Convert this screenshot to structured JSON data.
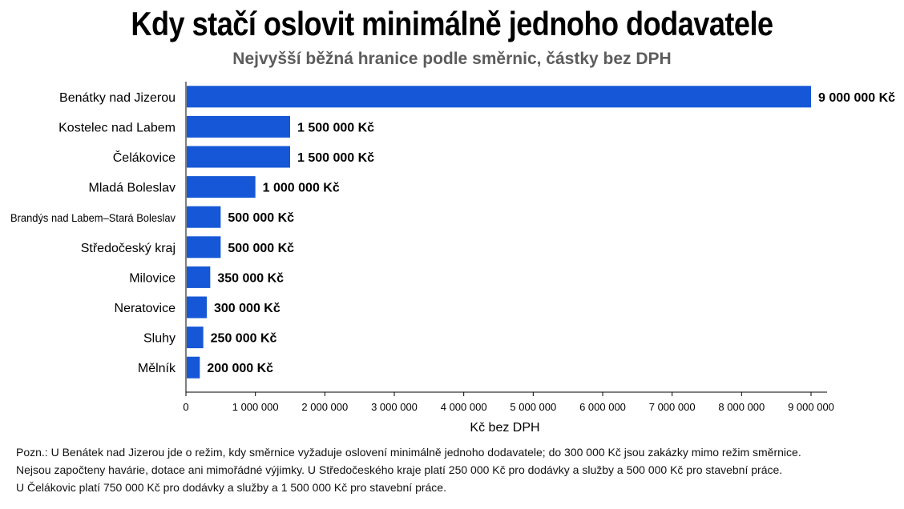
{
  "title": "Kdy stačí oslovit minimálně jednoho dodavatele",
  "subtitle": "Nejvyšší běžná hranice podle směrnic, částky bez DPH",
  "colors": {
    "bar": "#1557d6",
    "axis": "#000000",
    "text": "#000000"
  },
  "chart_data": {
    "type": "bar",
    "orientation": "horizontal",
    "categories": [
      "Benátky nad Jizerou",
      "Kostelec nad Labem",
      "Čelákovice",
      "Mladá Boleslav",
      "Brandýs nad Labem–Stará Boleslav",
      "Středočeský kraj",
      "Milovice",
      "Neratovice",
      "Sluhy",
      "Mělník"
    ],
    "values": [
      9000000,
      1500000,
      1500000,
      1000000,
      500000,
      500000,
      350000,
      300000,
      250000,
      200000
    ],
    "value_labels": [
      "9 000 000 Kč",
      "1 500 000 Kč",
      "1 500 000 Kč",
      "1 000 000 Kč",
      "500 000 Kč",
      "500 000 Kč",
      "350 000 Kč",
      "300 000 Kč",
      "250 000 Kč",
      "200 000 Kč"
    ],
    "xlabel": "Kč bez DPH",
    "xlim": [
      0,
      9000000
    ],
    "xticks": [
      0,
      1000000,
      2000000,
      3000000,
      4000000,
      5000000,
      6000000,
      7000000,
      8000000,
      9000000
    ],
    "xtick_labels": [
      "0",
      "1 000 000",
      "2 000 000",
      "3 000 000",
      "4 000 000",
      "5 000 000",
      "6 000 000",
      "7 000 000",
      "8 000 000",
      "9 000 000"
    ],
    "grid": false,
    "legend": "none"
  },
  "note": {
    "line1": "Pozn.: U Benátek nad Jizerou jde o režim, kdy směrnice vyžaduje oslovení minimálně jednoho dodavatele; do 300 000 Kč jsou zakázky mimo režim směrnice.",
    "line2": "Nejsou započteny havárie, dotace ani mimořádné výjimky. U Středočeského kraje platí 250 000 Kč pro dodávky a služby a 500 000 Kč pro stavební práce.",
    "line3": "U Čelákovic platí 750 000 Kč pro dodávky a služby a 1 500 000 Kč pro stavební práce."
  }
}
